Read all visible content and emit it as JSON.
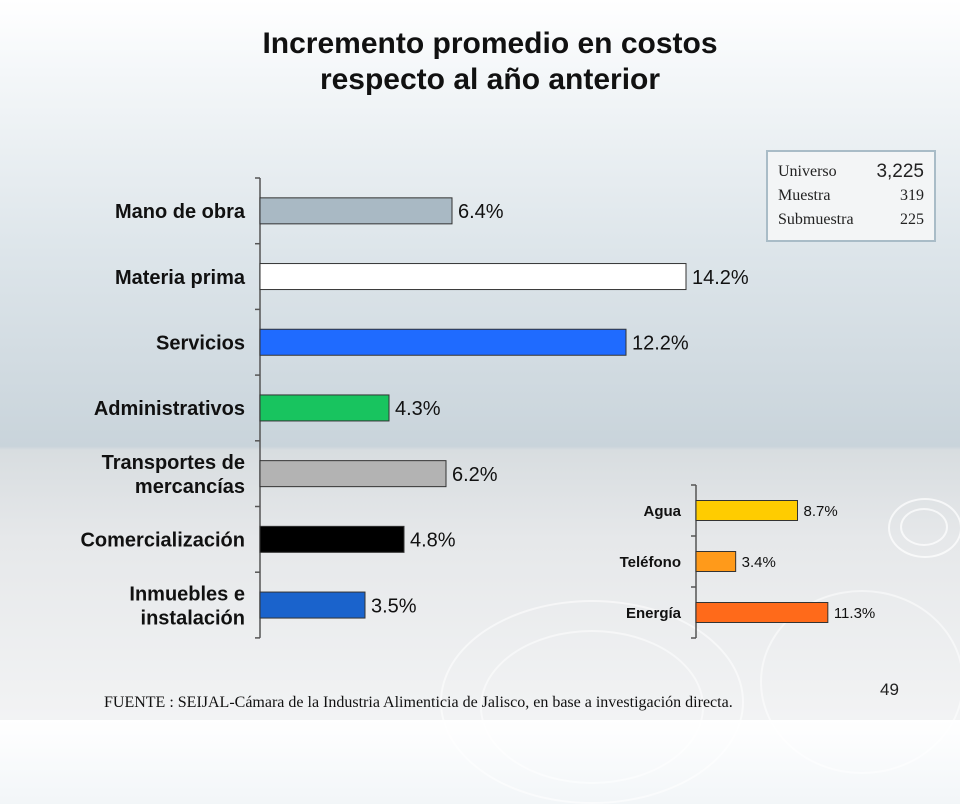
{
  "title_line1": "Incremento promedio en costos",
  "title_line2": "respecto al año anterior",
  "sample": {
    "universe_label": "Universo",
    "universe_value": "3,225",
    "sample_label": "Muestra",
    "sample_value": "319",
    "subsample_label": "Submuestra",
    "subsample_value": "225"
  },
  "source": "FUENTE : SEIJAL-Cámara de la Industria Alimenticia de Jalisco, en base a investigación directa.",
  "page_number": "49",
  "chart_data": [
    {
      "type": "bar",
      "orientation": "horizontal",
      "categories": [
        [
          "Mano de obra"
        ],
        [
          "Materia prima"
        ],
        [
          "Servicios"
        ],
        [
          "Administrativos"
        ],
        [
          "Transportes de",
          "mercancías"
        ],
        [
          "Comercialización"
        ],
        [
          "Inmuebles e",
          "instalación"
        ]
      ],
      "values": [
        6.4,
        14.2,
        12.2,
        4.3,
        6.2,
        4.8,
        3.5
      ],
      "value_labels": [
        "6.4%",
        "14.2%",
        "12.2%",
        "4.3%",
        "6.2%",
        "4.8%",
        "3.5%"
      ],
      "colors": [
        "#a9b9c4",
        "#ffffff",
        "#1f6bff",
        "#18c45f",
        "#b3b3b3",
        "#000000",
        "#1a63cc"
      ],
      "xlim": [
        0,
        15
      ],
      "grid": false
    },
    {
      "type": "bar",
      "orientation": "horizontal",
      "categories": [
        [
          "Agua"
        ],
        [
          "Teléfono"
        ],
        [
          "Energía"
        ]
      ],
      "values": [
        8.7,
        3.4,
        11.3
      ],
      "value_labels": [
        "8.7%",
        "3.4%",
        "11.3%"
      ],
      "colors": [
        "#ffcc00",
        "#ff9a1a",
        "#ff6a1a"
      ],
      "xlim": [
        0,
        15
      ],
      "grid": false
    }
  ]
}
